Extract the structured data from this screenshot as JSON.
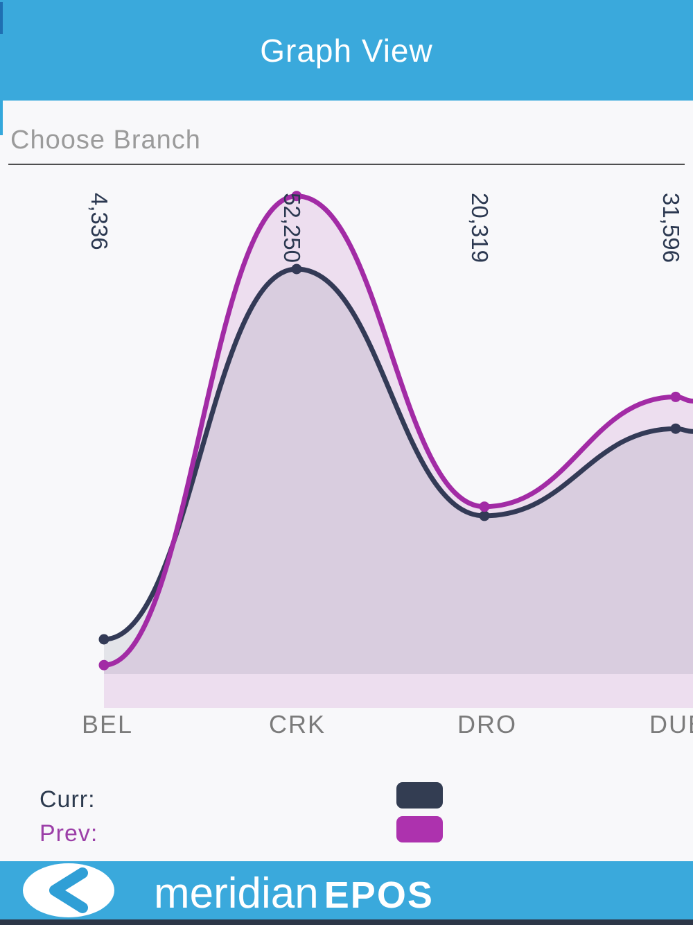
{
  "header": {
    "title": "Graph View"
  },
  "branch_picker": {
    "placeholder": "Choose Branch"
  },
  "chart_data": {
    "type": "area",
    "title": "",
    "categories": [
      "BEL",
      "CRK",
      "DRO",
      "DUB"
    ],
    "categories_note": "last category label clipped at right screen edge",
    "series": [
      {
        "name": "Curr",
        "color": "#333a56",
        "values": [
          4336,
          52250,
          20319,
          31596
        ],
        "point_labels": [
          "4,336",
          "52,250",
          "20,319",
          "31,596"
        ]
      },
      {
        "name": "Prev",
        "color": "#a22ba5",
        "values": [
          1000,
          61700,
          21500,
          35700
        ],
        "values_estimated": true
      }
    ],
    "value_labels_shown_for": "Curr",
    "value_label_color": "#2b3850",
    "axis_label_color": "#7b7b7b",
    "grid": false,
    "y_axis_visible": false,
    "legend_position": "bottom-left",
    "curve": "smooth-cubic"
  },
  "legend": {
    "items": [
      {
        "label": "Curr:",
        "swatch_color": "#333d52",
        "text_color": "#2c3a4e"
      },
      {
        "label": "Prev:",
        "swatch_color": "#ad32ae",
        "text_color": "#9c3fa8"
      }
    ]
  },
  "footer": {
    "brand_light": "meridian",
    "brand_bold": "EPOS",
    "back_icon": "chevron-left-icon"
  },
  "colors": {
    "accent_blue": "#3aa9dc",
    "curr": "#333a56",
    "prev": "#a22ba5",
    "bottom_inset": "#2d3748"
  }
}
